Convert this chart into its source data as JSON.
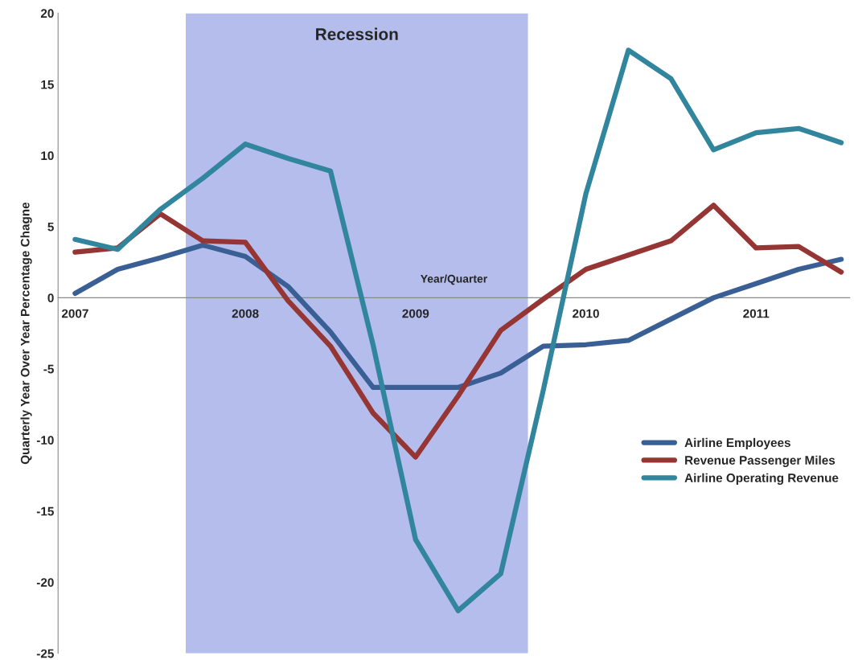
{
  "chart_data": {
    "type": "line",
    "xlabel": "Year/Quarter",
    "ylabel": "Quarterly Year Over Year Percentage Chagne",
    "x": [
      2007,
      2007.25,
      2007.5,
      2007.75,
      2008,
      2008.25,
      2008.5,
      2008.75,
      2009,
      2009.25,
      2009.5,
      2009.75,
      2010,
      2010.25,
      2010.5,
      2010.75,
      2011,
      2011.25,
      2011.5
    ],
    "xlim": [
      2006.9,
      2011.55
    ],
    "xticks": [
      2007,
      2008,
      2009,
      2010,
      2011
    ],
    "ylim": [
      -25,
      20
    ],
    "yticks": [
      -25,
      -20,
      -15,
      -10,
      -5,
      0,
      5,
      10,
      15,
      20
    ],
    "series": [
      {
        "name": "Airline Employees",
        "color": "#3a5f94",
        "values": [
          0.3,
          2.0,
          2.8,
          3.7,
          2.9,
          0.8,
          -2.4,
          -6.3,
          -6.3,
          -6.3,
          -5.3,
          -3.4,
          -3.3,
          -3.0,
          -1.5,
          0.0,
          1.0,
          2.0,
          2.7
        ]
      },
      {
        "name": "Revenue Passenger Miles",
        "color": "#963634",
        "values": [
          3.2,
          3.5,
          5.9,
          4.0,
          3.9,
          -0.2,
          -3.4,
          -8.1,
          -11.2,
          -6.9,
          -2.3,
          -0.1,
          2.0,
          3.0,
          4.0,
          6.5,
          3.5,
          3.6,
          1.8
        ]
      },
      {
        "name": "Airline Operating Revenue",
        "color": "#31859c",
        "values": [
          4.1,
          3.4,
          6.2,
          8.4,
          10.8,
          9.8,
          8.9,
          -3.3,
          -17.0,
          -22.0,
          -19.4,
          -6.5,
          7.3,
          17.4,
          15.4,
          10.4,
          11.6,
          11.9,
          10.9
        ]
      }
    ],
    "bands": [
      {
        "axis": "x",
        "from": 2007.65,
        "to": 2009.66,
        "label": "Recession",
        "color": "#b4bdec"
      }
    ],
    "legend": "right",
    "grid": false,
    "marker": "none",
    "line_style": "solid"
  }
}
